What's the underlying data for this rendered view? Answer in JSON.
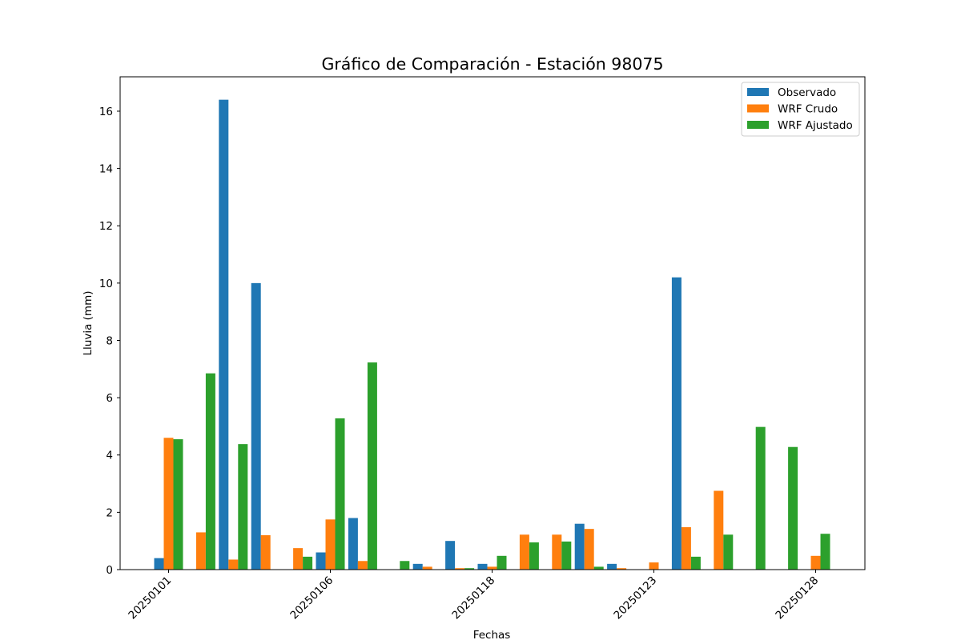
{
  "chart_data": {
    "type": "bar",
    "title": "Gráfico de Comparación - Estación 98075",
    "xlabel": "Fechas",
    "ylabel": "Lluvia (mm)",
    "ylim": [
      0,
      17.2
    ],
    "yticks": [
      0,
      2,
      4,
      6,
      8,
      10,
      12,
      14,
      16
    ],
    "xtick_labels": [
      "20250101",
      "20250106",
      "20250118",
      "20250123",
      "20250128"
    ],
    "xtick_positions": [
      0,
      5,
      10,
      15,
      20
    ],
    "n_categories": 21,
    "legend_position": "upper right",
    "grid": false,
    "series": [
      {
        "name": "Observado",
        "color": "#1f77b4",
        "values": [
          0.4,
          0,
          16.4,
          10.0,
          0,
          0.6,
          1.8,
          0,
          0.2,
          1.0,
          0.2,
          0,
          0,
          1.6,
          0.2,
          0,
          10.2,
          0,
          0,
          0,
          0
        ]
      },
      {
        "name": "WRF Crudo",
        "color": "#ff7f0e",
        "values": [
          4.6,
          1.3,
          0.35,
          1.2,
          0.75,
          1.75,
          0.3,
          0,
          0.1,
          0.05,
          0.1,
          1.22,
          1.22,
          1.42,
          0.05,
          0.25,
          1.48,
          2.75,
          0,
          0,
          0.48
        ]
      },
      {
        "name": "WRF Ajustado",
        "color": "#2ca02c",
        "values": [
          4.55,
          6.85,
          4.38,
          0,
          0.45,
          5.28,
          7.23,
          0.3,
          0,
          0.05,
          0.48,
          0.95,
          0.98,
          0.1,
          0,
          0,
          0.45,
          1.22,
          4.98,
          4.28,
          1.25
        ]
      }
    ]
  }
}
